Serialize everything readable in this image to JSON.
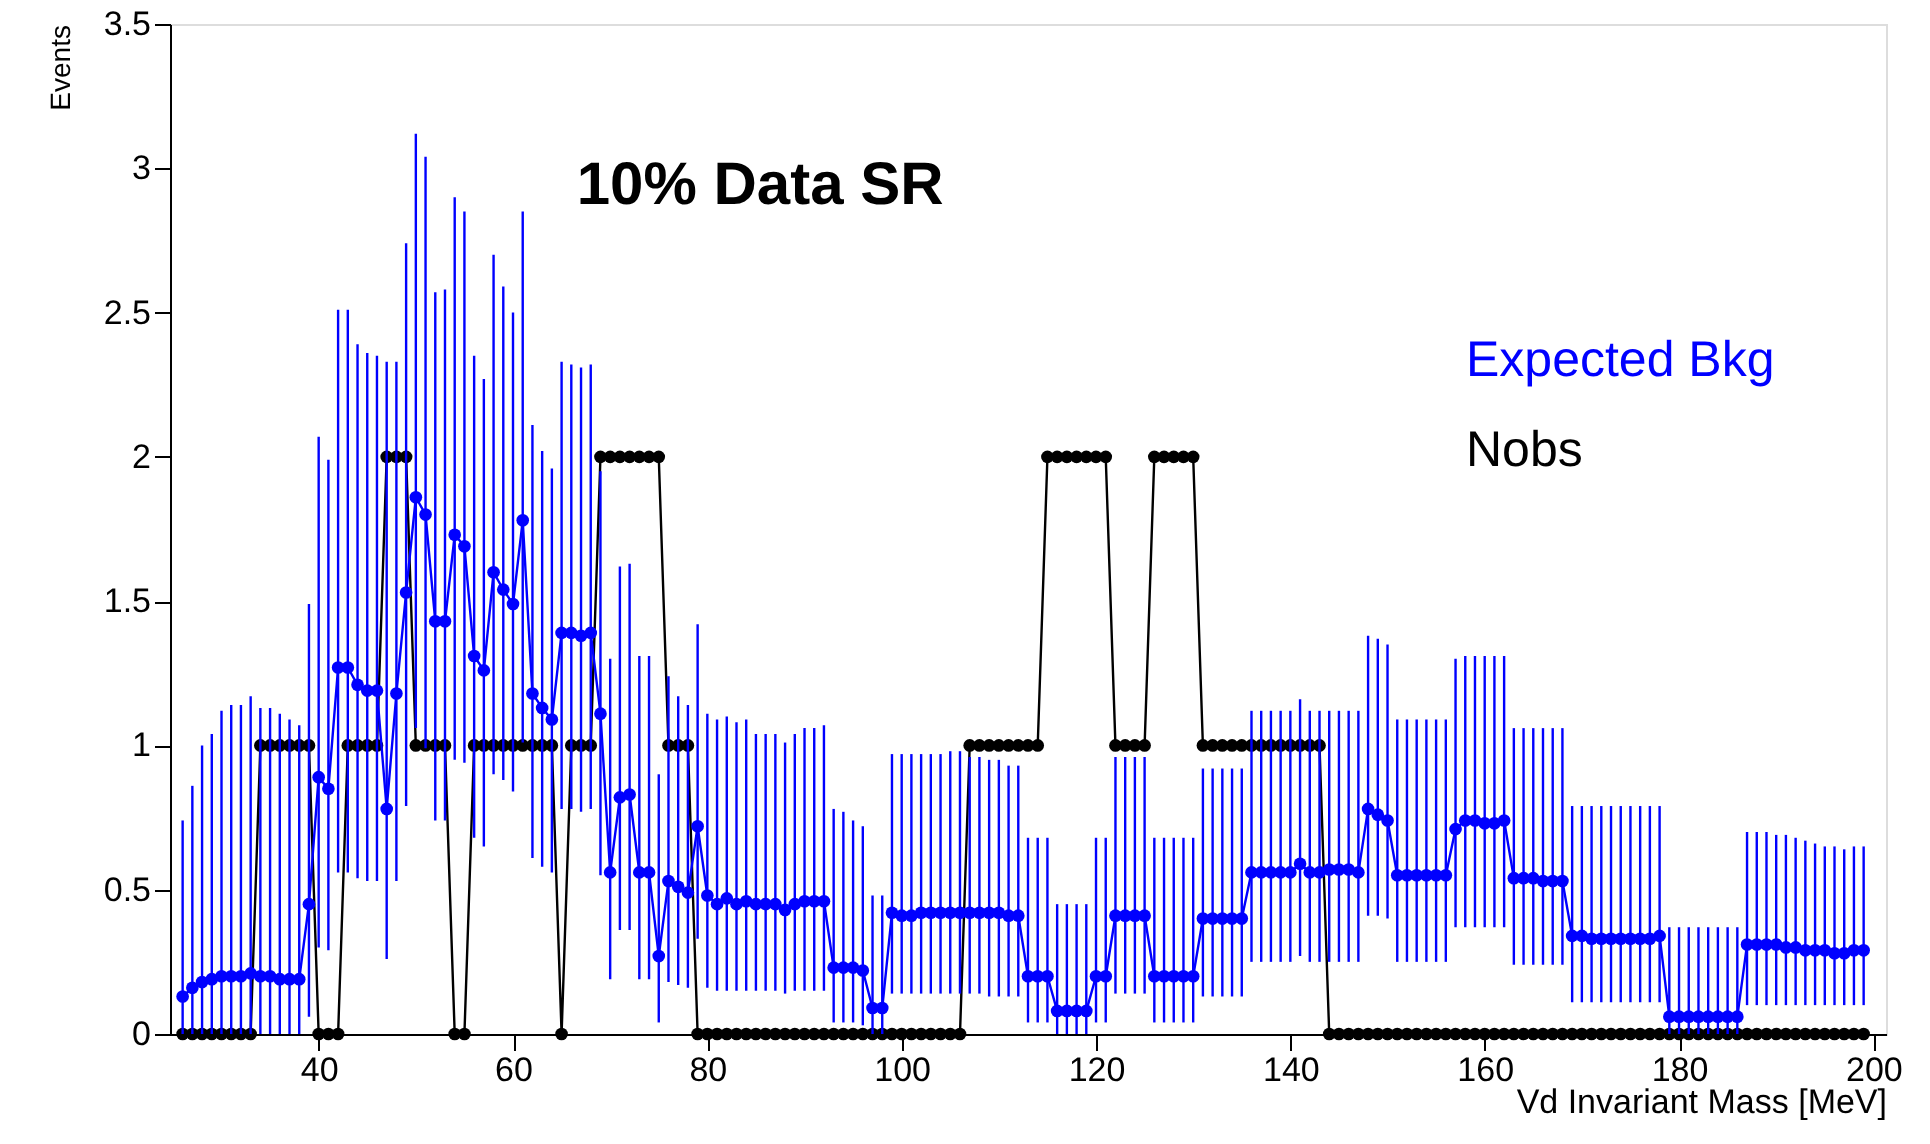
{
  "chart_data": {
    "type": "line",
    "title": "10% Data SR",
    "xlabel": "Vd Invariant Mass [MeV]",
    "ylabel": "Events",
    "x": [
      26,
      27,
      28,
      29,
      30,
      31,
      32,
      33,
      34,
      35,
      36,
      37,
      38,
      39,
      40,
      41,
      42,
      43,
      44,
      45,
      46,
      47,
      48,
      49,
      50,
      51,
      52,
      53,
      54,
      55,
      56,
      57,
      58,
      59,
      60,
      61,
      62,
      63,
      64,
      65,
      66,
      67,
      68,
      69,
      70,
      71,
      72,
      73,
      74,
      75,
      76,
      77,
      78,
      79,
      80,
      81,
      82,
      83,
      84,
      85,
      86,
      87,
      88,
      89,
      90,
      91,
      92,
      93,
      94,
      95,
      96,
      97,
      98,
      99,
      100,
      101,
      102,
      103,
      104,
      105,
      106,
      107,
      108,
      109,
      110,
      111,
      112,
      113,
      114,
      115,
      116,
      117,
      118,
      119,
      120,
      121,
      122,
      123,
      124,
      125,
      126,
      127,
      128,
      129,
      130,
      131,
      132,
      133,
      134,
      135,
      136,
      137,
      138,
      139,
      140,
      141,
      142,
      143,
      144,
      145,
      146,
      147,
      148,
      149,
      150,
      151,
      152,
      153,
      154,
      155,
      156,
      157,
      158,
      159,
      160,
      161,
      162,
      163,
      164,
      165,
      166,
      167,
      168,
      169,
      170,
      171,
      172,
      173,
      174,
      175,
      176,
      177,
      178,
      179,
      180,
      181,
      182,
      183,
      184,
      185,
      186,
      187,
      188,
      189,
      190,
      191,
      192,
      193,
      194,
      195,
      196,
      197,
      198,
      199
    ],
    "series": [
      {
        "name": "Nobs",
        "color": "#000000",
        "values": [
          0,
          0,
          0,
          0,
          0,
          0,
          0,
          0,
          1,
          1,
          1,
          1,
          1,
          1,
          0,
          0,
          0,
          1,
          1,
          1,
          1,
          2,
          2,
          2,
          1,
          1,
          1,
          1,
          0,
          0,
          1,
          1,
          1,
          1,
          1,
          1,
          1,
          1,
          1,
          0,
          1,
          1,
          1,
          2,
          2,
          2,
          2,
          2,
          2,
          2,
          1,
          1,
          1,
          0,
          0,
          0,
          0,
          0,
          0,
          0,
          0,
          0,
          0,
          0,
          0,
          0,
          0,
          0,
          0,
          0,
          0,
          0,
          0,
          0,
          0,
          0,
          0,
          0,
          0,
          0,
          0,
          1,
          1,
          1,
          1,
          1,
          1,
          1,
          1,
          2,
          2,
          2,
          2,
          2,
          2,
          2,
          1,
          1,
          1,
          1,
          2,
          2,
          2,
          2,
          2,
          1,
          1,
          1,
          1,
          1,
          1,
          1,
          1,
          1,
          1,
          1,
          1,
          1,
          0,
          0,
          0,
          0,
          0,
          0,
          0,
          0,
          0,
          0,
          0,
          0,
          0,
          0,
          0,
          0,
          0,
          0,
          0,
          0,
          0,
          0,
          0,
          0,
          0,
          0,
          0,
          0,
          0,
          0,
          0,
          0,
          0,
          0,
          0,
          0,
          0,
          0,
          0,
          0,
          0,
          0,
          0,
          0,
          0,
          0,
          0,
          0,
          0,
          0,
          0,
          0,
          0,
          0,
          0,
          0
        ]
      },
      {
        "name": "Expected Bkg",
        "color": "#0000ff",
        "values": [
          0.13,
          0.16,
          0.18,
          0.19,
          0.2,
          0.2,
          0.2,
          0.21,
          0.2,
          0.2,
          0.19,
          0.19,
          0.19,
          0.45,
          0.89,
          0.85,
          1.27,
          1.27,
          1.21,
          1.19,
          1.19,
          0.78,
          1.18,
          1.53,
          1.86,
          1.8,
          1.43,
          1.43,
          1.73,
          1.69,
          1.31,
          1.26,
          1.6,
          1.54,
          1.49,
          1.78,
          1.18,
          1.13,
          1.09,
          1.39,
          1.39,
          1.38,
          1.39,
          1.11,
          0.56,
          0.82,
          0.83,
          0.56,
          0.56,
          0.27,
          0.53,
          0.51,
          0.49,
          0.72,
          0.48,
          0.45,
          0.47,
          0.45,
          0.46,
          0.45,
          0.45,
          0.45,
          0.43,
          0.45,
          0.46,
          0.46,
          0.46,
          0.23,
          0.23,
          0.23,
          0.22,
          0.09,
          0.09,
          0.42,
          0.41,
          0.41,
          0.42,
          0.42,
          0.42,
          0.42,
          0.42,
          0.42,
          0.42,
          0.42,
          0.42,
          0.41,
          0.41,
          0.2,
          0.2,
          0.2,
          0.08,
          0.08,
          0.08,
          0.08,
          0.2,
          0.2,
          0.41,
          0.41,
          0.41,
          0.41,
          0.2,
          0.2,
          0.2,
          0.2,
          0.2,
          0.4,
          0.4,
          0.4,
          0.4,
          0.4,
          0.56,
          0.56,
          0.56,
          0.56,
          0.56,
          0.59,
          0.56,
          0.56,
          0.57,
          0.57,
          0.57,
          0.56,
          0.78,
          0.76,
          0.74,
          0.55,
          0.55,
          0.55,
          0.55,
          0.55,
          0.55,
          0.71,
          0.74,
          0.74,
          0.73,
          0.73,
          0.74,
          0.54,
          0.54,
          0.54,
          0.53,
          0.53,
          0.53,
          0.34,
          0.34,
          0.33,
          0.33,
          0.33,
          0.33,
          0.33,
          0.33,
          0.33,
          0.34,
          0.06,
          0.06,
          0.06,
          0.06,
          0.06,
          0.06,
          0.06,
          0.06,
          0.31,
          0.31,
          0.31,
          0.31,
          0.3,
          0.3,
          0.29,
          0.29,
          0.29,
          0.28,
          0.28,
          0.29,
          0.29
        ],
        "errors": [
          [
            0,
            0.74
          ],
          [
            0,
            0.86
          ],
          [
            0,
            1.0
          ],
          [
            0,
            1.04
          ],
          [
            0,
            1.12
          ],
          [
            0,
            1.14
          ],
          [
            0,
            1.14
          ],
          [
            0,
            1.17
          ],
          [
            0,
            1.13
          ],
          [
            0,
            1.13
          ],
          [
            0,
            1.11
          ],
          [
            0,
            1.09
          ],
          [
            0,
            1.07
          ],
          [
            0.06,
            1.49
          ],
          [
            0.3,
            2.07
          ],
          [
            0.29,
            1.99
          ],
          [
            0.56,
            2.51
          ],
          [
            0.56,
            2.51
          ],
          [
            0.54,
            2.39
          ],
          [
            0.53,
            2.36
          ],
          [
            0.53,
            2.35
          ],
          [
            0.26,
            2.33
          ],
          [
            0.53,
            2.33
          ],
          [
            0.79,
            2.74
          ],
          [
            1.06,
            3.12
          ],
          [
            0.99,
            3.04
          ],
          [
            0.74,
            2.57
          ],
          [
            0.74,
            2.58
          ],
          [
            0.95,
            2.9
          ],
          [
            0.94,
            2.85
          ],
          [
            0.68,
            2.35
          ],
          [
            0.65,
            2.27
          ],
          [
            0.9,
            2.7
          ],
          [
            0.88,
            2.59
          ],
          [
            0.84,
            2.5
          ],
          [
            1.01,
            2.85
          ],
          [
            0.61,
            2.11
          ],
          [
            0.58,
            2.02
          ],
          [
            0.56,
            1.96
          ],
          [
            0.78,
            2.33
          ],
          [
            0.78,
            2.32
          ],
          [
            0.77,
            2.31
          ],
          [
            0.78,
            2.32
          ],
          [
            0.55,
            1.95
          ],
          [
            0.19,
            1.3
          ],
          [
            0.36,
            1.62
          ],
          [
            0.36,
            1.63
          ],
          [
            0.19,
            1.31
          ],
          [
            0.19,
            1.31
          ],
          [
            0.04,
            0.9
          ],
          [
            0.18,
            1.24
          ],
          [
            0.17,
            1.17
          ],
          [
            0.16,
            1.14
          ],
          [
            0.33,
            1.42
          ],
          [
            0.16,
            1.11
          ],
          [
            0.15,
            1.09
          ],
          [
            0.15,
            1.1
          ],
          [
            0.15,
            1.08
          ],
          [
            0.15,
            1.09
          ],
          [
            0.15,
            1.04
          ],
          [
            0.15,
            1.04
          ],
          [
            0.15,
            1.04
          ],
          [
            0.14,
            1.01
          ],
          [
            0.15,
            1.04
          ],
          [
            0.15,
            1.06
          ],
          [
            0.15,
            1.06
          ],
          [
            0.15,
            1.07
          ],
          [
            0.04,
            0.78
          ],
          [
            0.04,
            0.77
          ],
          [
            0.04,
            0.74
          ],
          [
            0.03,
            0.72
          ],
          [
            0,
            0.48
          ],
          [
            0,
            0.48
          ],
          [
            0.14,
            0.97
          ],
          [
            0.14,
            0.97
          ],
          [
            0.14,
            0.97
          ],
          [
            0.14,
            0.97
          ],
          [
            0.14,
            0.97
          ],
          [
            0.14,
            0.97
          ],
          [
            0.14,
            0.98
          ],
          [
            0.14,
            0.98
          ],
          [
            0.14,
            0.96
          ],
          [
            0.14,
            0.96
          ],
          [
            0.13,
            0.95
          ],
          [
            0.13,
            0.95
          ],
          [
            0.13,
            0.93
          ],
          [
            0.13,
            0.93
          ],
          [
            0.04,
            0.68
          ],
          [
            0.04,
            0.68
          ],
          [
            0.04,
            0.68
          ],
          [
            0,
            0.45
          ],
          [
            0,
            0.45
          ],
          [
            0,
            0.45
          ],
          [
            0,
            0.45
          ],
          [
            0.04,
            0.68
          ],
          [
            0.04,
            0.68
          ],
          [
            0.14,
            0.96
          ],
          [
            0.14,
            0.96
          ],
          [
            0.14,
            0.96
          ],
          [
            0.14,
            0.96
          ],
          [
            0.04,
            0.68
          ],
          [
            0.04,
            0.68
          ],
          [
            0.04,
            0.68
          ],
          [
            0.04,
            0.68
          ],
          [
            0.04,
            0.68
          ],
          [
            0.13,
            0.92
          ],
          [
            0.13,
            0.92
          ],
          [
            0.13,
            0.92
          ],
          [
            0.13,
            0.92
          ],
          [
            0.13,
            0.92
          ],
          [
            0.25,
            1.12
          ],
          [
            0.25,
            1.12
          ],
          [
            0.25,
            1.12
          ],
          [
            0.25,
            1.12
          ],
          [
            0.25,
            1.12
          ],
          [
            0.27,
            1.16
          ],
          [
            0.25,
            1.12
          ],
          [
            0.25,
            1.12
          ],
          [
            0.25,
            1.12
          ],
          [
            0.25,
            1.12
          ],
          [
            0.25,
            1.12
          ],
          [
            0.25,
            1.12
          ],
          [
            0.41,
            1.38
          ],
          [
            0.41,
            1.37
          ],
          [
            0.4,
            1.35
          ],
          [
            0.25,
            1.09
          ],
          [
            0.25,
            1.09
          ],
          [
            0.25,
            1.09
          ],
          [
            0.25,
            1.09
          ],
          [
            0.25,
            1.09
          ],
          [
            0.25,
            1.09
          ],
          [
            0.37,
            1.3
          ],
          [
            0.37,
            1.31
          ],
          [
            0.37,
            1.31
          ],
          [
            0.37,
            1.31
          ],
          [
            0.37,
            1.31
          ],
          [
            0.37,
            1.31
          ],
          [
            0.24,
            1.06
          ],
          [
            0.24,
            1.06
          ],
          [
            0.24,
            1.06
          ],
          [
            0.24,
            1.06
          ],
          [
            0.24,
            1.06
          ],
          [
            0.24,
            1.06
          ],
          [
            0.11,
            0.79
          ],
          [
            0.11,
            0.79
          ],
          [
            0.11,
            0.79
          ],
          [
            0.11,
            0.79
          ],
          [
            0.11,
            0.79
          ],
          [
            0.11,
            0.79
          ],
          [
            0.11,
            0.79
          ],
          [
            0.11,
            0.79
          ],
          [
            0.11,
            0.79
          ],
          [
            0.11,
            0.79
          ],
          [
            0,
            0.37
          ],
          [
            0,
            0.37
          ],
          [
            0,
            0.37
          ],
          [
            0,
            0.37
          ],
          [
            0,
            0.37
          ],
          [
            0,
            0.37
          ],
          [
            0,
            0.37
          ],
          [
            0,
            0.37
          ],
          [
            0.1,
            0.7
          ],
          [
            0.1,
            0.7
          ],
          [
            0.1,
            0.7
          ],
          [
            0.1,
            0.69
          ],
          [
            0.1,
            0.69
          ],
          [
            0.1,
            0.68
          ],
          [
            0.1,
            0.67
          ],
          [
            0.1,
            0.66
          ],
          [
            0.1,
            0.65
          ],
          [
            0.1,
            0.65
          ],
          [
            0.1,
            0.64
          ],
          [
            0.1,
            0.65
          ],
          [
            0.1,
            0.65
          ]
        ]
      }
    ],
    "xlim": [
      24.7,
      201.3
    ],
    "xticks": [
      40,
      60,
      80,
      100,
      120,
      140,
      160,
      180,
      200
    ],
    "ylim": [
      0,
      3.5
    ],
    "yticks": [
      0,
      0.5,
      1,
      1.5,
      2,
      2.5,
      3,
      3.5
    ],
    "grid": false,
    "legend": "top right",
    "marker": "circle",
    "line_style": "solid"
  }
}
